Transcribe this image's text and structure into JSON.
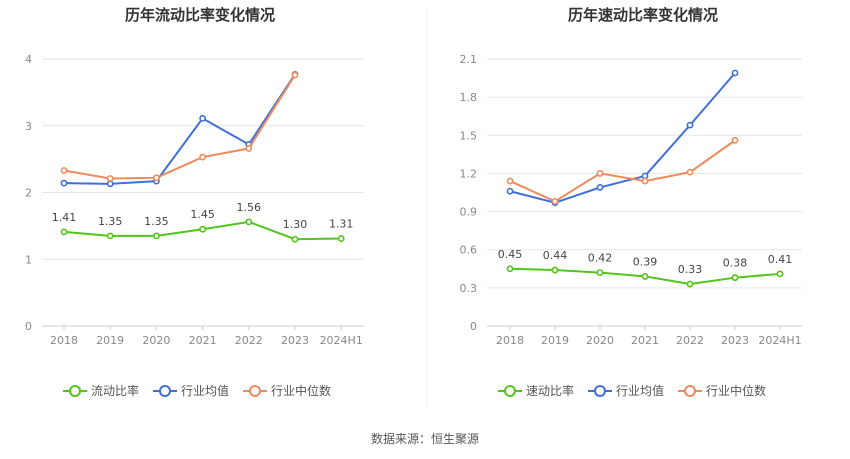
{
  "colors": {
    "company": "#52c41a",
    "avg": "#3f6fd8",
    "median": "#f08a5d",
    "grid": "#e6e6e6",
    "axis": "#cccccc"
  },
  "chart_data": [
    {
      "type": "line",
      "title": "历年流动比率变化情况",
      "categories": [
        "2018",
        "2019",
        "2020",
        "2021",
        "2022",
        "2023",
        "2024H1"
      ],
      "ylim": [
        0,
        4
      ],
      "yticks": [
        "0",
        "1",
        "2",
        "3",
        "4"
      ],
      "grid": true,
      "legend_position": "bottom",
      "series": [
        {
          "name": "流动比率",
          "role": "company",
          "values": [
            1.41,
            1.35,
            1.35,
            1.45,
            1.56,
            1.3,
            1.31
          ],
          "labels": [
            "1.41",
            "1.35",
            "1.35",
            "1.45",
            "1.56",
            "1.30",
            "1.31"
          ]
        },
        {
          "name": "行业均值",
          "role": "avg",
          "values": [
            2.14,
            2.13,
            2.17,
            3.11,
            2.72,
            3.77,
            null
          ]
        },
        {
          "name": "行业中位数",
          "role": "median",
          "values": [
            2.33,
            2.21,
            2.22,
            2.53,
            2.66,
            3.76,
            null
          ]
        }
      ]
    },
    {
      "type": "line",
      "title": "历年速动比率变化情况",
      "categories": [
        "2018",
        "2019",
        "2020",
        "2021",
        "2022",
        "2023",
        "2024H1"
      ],
      "ylim": [
        0,
        2.1
      ],
      "yticks": [
        "0",
        "0.3",
        "0.6",
        "0.9",
        "1.2",
        "1.5",
        "1.8",
        "2.1"
      ],
      "grid": true,
      "legend_position": "bottom",
      "series": [
        {
          "name": "速动比率",
          "role": "company",
          "values": [
            0.45,
            0.44,
            0.42,
            0.39,
            0.33,
            0.38,
            0.41
          ],
          "labels": [
            "0.45",
            "0.44",
            "0.42",
            "0.39",
            "0.33",
            "0.38",
            "0.41"
          ]
        },
        {
          "name": "行业均值",
          "role": "avg",
          "values": [
            1.06,
            0.97,
            1.09,
            1.18,
            1.58,
            1.99,
            null
          ]
        },
        {
          "name": "行业中位数",
          "role": "median",
          "values": [
            1.14,
            0.98,
            1.2,
            1.14,
            1.21,
            1.46,
            null
          ]
        }
      ]
    }
  ],
  "footer": {
    "source": "数据来源：恒生聚源"
  }
}
